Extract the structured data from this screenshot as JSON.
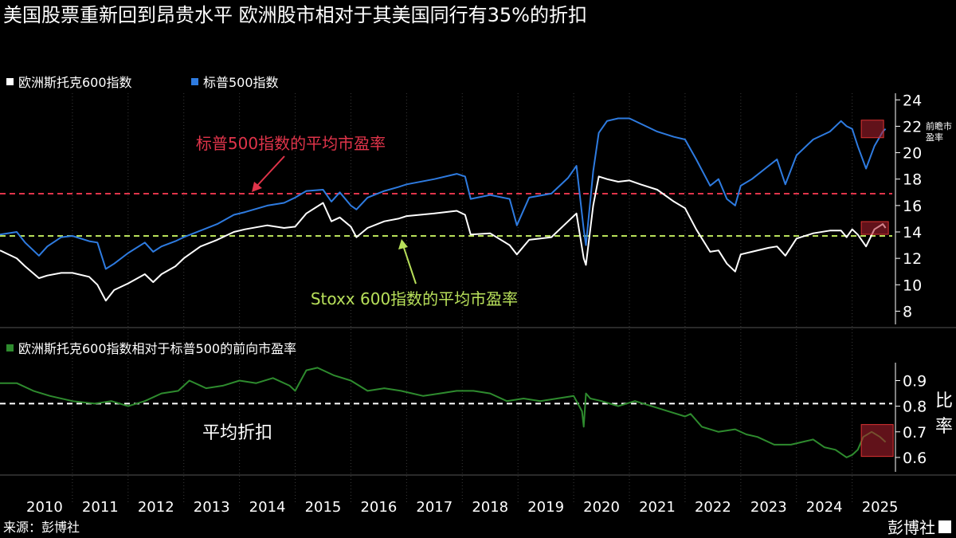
{
  "title": "美国股票重新回到昂贵水平 欧洲股市相对于其美国同行有35%的折扣",
  "source": "来源：彭博社",
  "brand": "彭博社",
  "colors": {
    "stoxx": "#ffffff",
    "sp": "#2e7be0",
    "ratio": "#2e8b2e",
    "avg_sp": "#e0344a",
    "avg_stoxx": "#b8e05a",
    "highlight": "#b0202f"
  },
  "chart_data": [
    {
      "type": "line",
      "legend": [
        "欧洲斯托克600指数",
        "标普500指数"
      ],
      "ylabel": "前瞻市盈率",
      "ylim": [
        7,
        24.5
      ],
      "yticks": [
        8,
        10,
        12,
        14,
        16,
        18,
        20,
        22,
        24
      ],
      "xlim": [
        2009.7,
        2025.72
      ],
      "xticks": [
        "2010",
        "2011",
        "2012",
        "2013",
        "2014",
        "2015",
        "2016",
        "2017",
        "2018",
        "2019",
        "2020",
        "2021",
        "2022",
        "2023",
        "2024",
        "2025"
      ],
      "annotations": [
        {
          "text": "标普500指数的平均市盈率",
          "value": 16.9
        },
        {
          "text": "Stoxx 600指数的平均市盈率",
          "value": 13.7
        }
      ],
      "series": [
        {
          "name": "标普500指数",
          "x": [
            2009.7,
            2010.0,
            2010.15,
            2010.4,
            2010.55,
            2010.8,
            2011.0,
            2011.3,
            2011.45,
            2011.6,
            2011.75,
            2012.0,
            2012.3,
            2012.45,
            2012.6,
            2012.85,
            2013.0,
            2013.3,
            2013.6,
            2013.9,
            2014.1,
            2014.5,
            2014.8,
            2015.0,
            2015.2,
            2015.5,
            2015.65,
            2015.8,
            2016.0,
            2016.1,
            2016.3,
            2016.6,
            2016.85,
            2017.0,
            2017.5,
            2017.9,
            2018.05,
            2018.15,
            2018.5,
            2018.85,
            2018.98,
            2019.2,
            2019.6,
            2019.9,
            2020.05,
            2020.18,
            2020.22,
            2020.35,
            2020.45,
            2020.6,
            2020.8,
            2021.0,
            2021.2,
            2021.5,
            2021.8,
            2022.0,
            2022.2,
            2022.45,
            2022.6,
            2022.75,
            2022.9,
            2023.0,
            2023.2,
            2023.5,
            2023.65,
            2023.8,
            2024.0,
            2024.3,
            2024.6,
            2024.8,
            2024.9,
            2025.0,
            2025.1,
            2025.25,
            2025.4,
            2025.55,
            2025.6
          ],
          "y": [
            13.8,
            14.0,
            13.2,
            12.2,
            12.9,
            13.6,
            13.7,
            13.3,
            13.2,
            11.2,
            11.6,
            12.4,
            13.2,
            12.5,
            12.9,
            13.3,
            13.6,
            14.1,
            14.6,
            15.3,
            15.5,
            16.0,
            16.2,
            16.6,
            17.1,
            17.2,
            16.3,
            17.0,
            16.0,
            15.7,
            16.6,
            17.1,
            17.4,
            17.6,
            18.0,
            18.4,
            18.2,
            16.5,
            16.8,
            16.5,
            14.5,
            16.6,
            16.9,
            18.1,
            19.0,
            14.2,
            13.0,
            18.6,
            21.5,
            22.4,
            22.6,
            22.6,
            22.2,
            21.6,
            21.2,
            21.0,
            19.5,
            17.5,
            18.0,
            16.5,
            16.0,
            17.5,
            18.0,
            19.0,
            19.5,
            17.6,
            19.8,
            21.0,
            21.6,
            22.4,
            22.0,
            21.8,
            20.5,
            18.8,
            20.5,
            21.6,
            21.8
          ]
        },
        {
          "name": "欧洲斯托克600指数",
          "x": [
            2009.7,
            2010.0,
            2010.15,
            2010.4,
            2010.55,
            2010.8,
            2011.0,
            2011.3,
            2011.45,
            2011.6,
            2011.75,
            2012.0,
            2012.3,
            2012.45,
            2012.6,
            2012.85,
            2013.0,
            2013.3,
            2013.6,
            2013.9,
            2014.1,
            2014.5,
            2014.8,
            2015.0,
            2015.2,
            2015.5,
            2015.65,
            2015.8,
            2016.0,
            2016.1,
            2016.3,
            2016.6,
            2016.85,
            2017.0,
            2017.5,
            2017.9,
            2018.05,
            2018.15,
            2018.5,
            2018.85,
            2018.98,
            2019.2,
            2019.6,
            2019.9,
            2020.05,
            2020.18,
            2020.22,
            2020.35,
            2020.45,
            2020.6,
            2020.8,
            2021.0,
            2021.2,
            2021.5,
            2021.8,
            2022.0,
            2022.2,
            2022.45,
            2022.6,
            2022.75,
            2022.9,
            2023.0,
            2023.2,
            2023.5,
            2023.65,
            2023.8,
            2024.0,
            2024.3,
            2024.6,
            2024.8,
            2024.9,
            2025.0,
            2025.1,
            2025.25,
            2025.4,
            2025.55,
            2025.6
          ],
          "y": [
            12.6,
            12.0,
            11.4,
            10.5,
            10.7,
            10.9,
            10.9,
            10.6,
            10.0,
            8.8,
            9.6,
            10.1,
            10.8,
            10.2,
            10.8,
            11.4,
            12.0,
            12.9,
            13.4,
            14.0,
            14.2,
            14.5,
            14.3,
            14.4,
            15.4,
            16.2,
            14.8,
            15.1,
            14.4,
            13.6,
            14.3,
            14.8,
            15.0,
            15.2,
            15.4,
            15.6,
            15.3,
            13.8,
            13.9,
            13.0,
            12.3,
            13.4,
            13.6,
            14.8,
            15.4,
            12.0,
            11.5,
            16.0,
            18.2,
            18.0,
            17.8,
            17.9,
            17.6,
            17.2,
            16.3,
            15.8,
            14.2,
            12.5,
            12.6,
            11.6,
            11.0,
            12.3,
            12.5,
            12.8,
            12.9,
            12.2,
            13.5,
            13.9,
            14.1,
            14.1,
            13.6,
            14.2,
            13.8,
            12.9,
            14.2,
            14.6,
            14.3
          ]
        }
      ]
    },
    {
      "type": "line",
      "legend": [
        "欧洲斯托克600指数相对于标普500的前向市盈率"
      ],
      "ylabel": "比率",
      "ylim": [
        0.55,
        0.97
      ],
      "yticks": [
        0.6,
        0.7,
        0.8,
        0.9
      ],
      "annotations": [
        {
          "text": "平均折扣",
          "value": 0.81
        }
      ],
      "series": [
        {
          "name": "欧洲斯托克600指数相对于标普500的前向市盈率",
          "x": [
            2009.7,
            2010.0,
            2010.3,
            2010.6,
            2011.0,
            2011.4,
            2011.7,
            2012.0,
            2012.3,
            2012.6,
            2012.9,
            2013.1,
            2013.4,
            2013.7,
            2014.0,
            2014.3,
            2014.6,
            2014.9,
            2015.0,
            2015.2,
            2015.4,
            2015.7,
            2016.0,
            2016.3,
            2016.6,
            2016.9,
            2017.3,
            2017.6,
            2017.9,
            2018.2,
            2018.5,
            2018.8,
            2019.1,
            2019.4,
            2019.7,
            2020.0,
            2020.15,
            2020.18,
            2020.22,
            2020.3,
            2020.5,
            2020.8,
            2021.1,
            2021.4,
            2021.7,
            2022.0,
            2022.1,
            2022.3,
            2022.6,
            2022.9,
            2023.1,
            2023.3,
            2023.6,
            2023.9,
            2024.1,
            2024.3,
            2024.5,
            2024.7,
            2024.9,
            2025.0,
            2025.1,
            2025.2,
            2025.35,
            2025.5,
            2025.6
          ],
          "y": [
            0.89,
            0.89,
            0.86,
            0.84,
            0.82,
            0.81,
            0.82,
            0.8,
            0.82,
            0.85,
            0.86,
            0.9,
            0.87,
            0.88,
            0.9,
            0.89,
            0.91,
            0.88,
            0.86,
            0.94,
            0.95,
            0.92,
            0.9,
            0.86,
            0.87,
            0.86,
            0.84,
            0.85,
            0.86,
            0.86,
            0.85,
            0.82,
            0.83,
            0.82,
            0.83,
            0.84,
            0.78,
            0.72,
            0.85,
            0.83,
            0.82,
            0.8,
            0.82,
            0.8,
            0.78,
            0.76,
            0.77,
            0.72,
            0.7,
            0.71,
            0.69,
            0.68,
            0.65,
            0.65,
            0.66,
            0.67,
            0.64,
            0.63,
            0.6,
            0.61,
            0.63,
            0.68,
            0.7,
            0.68,
            0.66
          ]
        }
      ]
    }
  ]
}
